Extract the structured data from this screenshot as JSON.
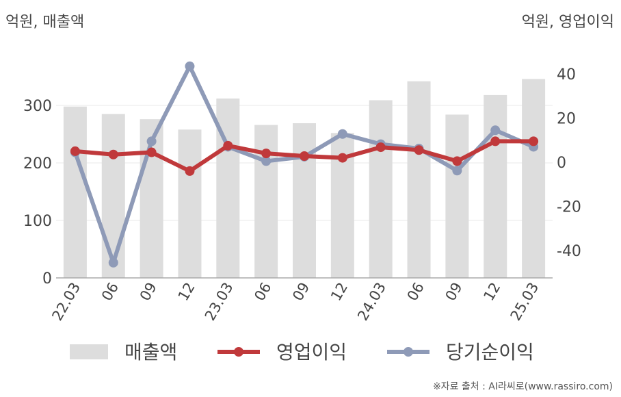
{
  "left_unit_label": "억원, 매출액",
  "right_unit_label": "억원, 영업이익",
  "source_text": "※자료 출처 : AI라씨로(www.rassiro.com)",
  "chart_data": {
    "type": "bar",
    "categories": [
      "22.03",
      "06",
      "09",
      "12",
      "23.03",
      "06",
      "09",
      "12",
      "24.03",
      "06",
      "09",
      "12",
      "25.03"
    ],
    "y_left": {
      "ylim": [
        0,
        400
      ],
      "ticks": [
        0,
        100,
        200,
        300
      ]
    },
    "y_right": {
      "ylim": [
        -52.4,
        51.8
      ],
      "ticks": [
        -40,
        -20,
        0,
        20,
        40
      ]
    },
    "grid": true,
    "legend_position": "bottom",
    "series": [
      {
        "name": "매출액",
        "type": "bar",
        "axis": "left",
        "color": "#dddddd",
        "values": [
          298,
          285,
          276,
          258,
          312,
          266,
          269,
          252,
          309,
          342,
          284,
          318,
          346
        ]
      },
      {
        "name": "영업이익",
        "type": "line",
        "axis": "right",
        "color": "#c0393b",
        "values": [
          5,
          3.5,
          4.5,
          -4,
          7.5,
          4,
          2.8,
          2,
          6.8,
          5.5,
          0.5,
          9.5,
          9.5
        ]
      },
      {
        "name": "당기순이익",
        "type": "line",
        "axis": "right",
        "color": "#8e9ab7",
        "values": [
          4.5,
          -45.5,
          9.5,
          43.5,
          7,
          0.5,
          2.5,
          12.8,
          8.2,
          6.2,
          -3.8,
          14.5,
          7
        ]
      }
    ]
  }
}
